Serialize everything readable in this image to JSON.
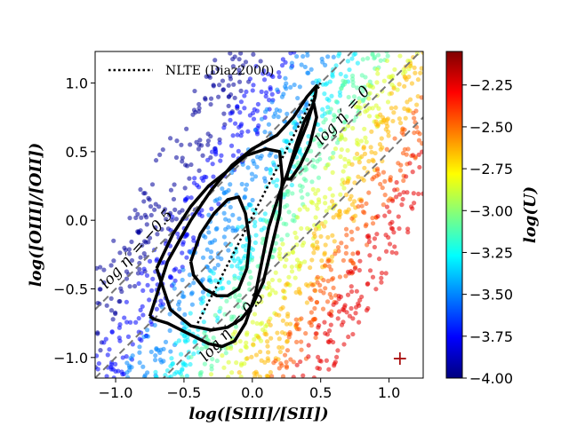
{
  "chart_data": {
    "type": "scatter",
    "xlabel": "log([SIII]/[SII])",
    "ylabel": "log([OIII]/[OII])",
    "xlim": [
      -1.15,
      1.25
    ],
    "ylim": [
      -1.15,
      1.23
    ],
    "x_ticks": [
      -1.0,
      -0.5,
      0.0,
      0.5,
      1.0
    ],
    "x_tick_labels": [
      "−1.0",
      "−0.5",
      "0.0",
      "0.5",
      "1.0"
    ],
    "y_ticks": [
      -1.0,
      -0.5,
      0.0,
      0.5,
      1.0
    ],
    "y_tick_labels": [
      "−1.0",
      "−0.5",
      "0.0",
      "0.5",
      "1.0"
    ],
    "colorbar": {
      "label": "log(U)",
      "range": [
        -4.0,
        -2.05
      ],
      "ticks": [
        -4.0,
        -3.75,
        -3.5,
        -3.25,
        -3.0,
        -2.75,
        -2.5,
        -2.25
      ],
      "tick_labels": [
        "−4.00",
        "−3.75",
        "−3.50",
        "−3.25",
        "−3.00",
        "−2.75",
        "−2.50",
        "−2.25"
      ],
      "colormap": "jet"
    },
    "legend": {
      "entries": [
        {
          "label": "NLTE (Diaz2000)",
          "style": "dotted",
          "color": "#000000"
        }
      ],
      "position": "top-left"
    },
    "dashed_lines": [
      {
        "label": "log η′ = −0.5",
        "log_eta": -0.5,
        "slope": 1.0,
        "intercept": 0.5
      },
      {
        "label": "log η′ = 0",
        "log_eta": 0,
        "slope": 1.0,
        "intercept": 0.0
      },
      {
        "label": "log η′ = 0.5",
        "log_eta": 0.5,
        "slope": 1.0,
        "intercept": -0.5
      }
    ],
    "nlte_line": {
      "x": [
        -0.4,
        0.5
      ],
      "y": [
        -0.75,
        1.0
      ]
    },
    "contours": [
      {
        "level": "outer",
        "x": [
          -0.75,
          -0.62,
          -0.45,
          -0.3,
          -0.15,
          0.0,
          0.18,
          0.3,
          0.4,
          0.47,
          0.46,
          0.4,
          0.3,
          0.2,
          0.12,
          0.07,
          0.02,
          -0.05,
          -0.13,
          -0.22,
          -0.32,
          -0.42,
          -0.52,
          -0.62,
          -0.72,
          -0.75
        ],
        "y": [
          -0.7,
          -0.3,
          0.0,
          0.22,
          0.4,
          0.52,
          0.62,
          0.75,
          0.9,
          0.98,
          0.9,
          0.7,
          0.45,
          0.2,
          -0.05,
          -0.3,
          -0.55,
          -0.75,
          -0.88,
          -0.92,
          -0.9,
          -0.85,
          -0.8,
          -0.75,
          -0.72,
          -0.7
        ]
      },
      {
        "level": "middle",
        "x": [
          -0.7,
          -0.58,
          -0.45,
          -0.32,
          -0.18,
          -0.05,
          0.1,
          0.2,
          0.22,
          0.2,
          0.14,
          0.08,
          0.0,
          -0.08,
          -0.18,
          -0.3,
          -0.45,
          -0.6,
          -0.7
        ],
        "y": [
          -0.35,
          -0.1,
          0.1,
          0.25,
          0.36,
          0.47,
          0.52,
          0.5,
          0.3,
          0.05,
          -0.2,
          -0.45,
          -0.62,
          -0.72,
          -0.78,
          -0.8,
          -0.77,
          -0.65,
          -0.35
        ]
      },
      {
        "level": "inner",
        "x": [
          -0.45,
          -0.38,
          -0.28,
          -0.18,
          -0.1,
          -0.05,
          -0.02,
          -0.04,
          -0.1,
          -0.18,
          -0.26,
          -0.35,
          -0.43,
          -0.45
        ],
        "y": [
          -0.3,
          -0.1,
          0.05,
          0.15,
          0.17,
          0.05,
          -0.15,
          -0.35,
          -0.5,
          -0.55,
          -0.55,
          -0.5,
          -0.4,
          -0.3
        ]
      },
      {
        "level": "upper",
        "x": [
          0.26,
          0.32,
          0.38,
          0.45,
          0.47,
          0.42,
          0.35,
          0.28,
          0.25,
          0.26
        ],
        "y": [
          0.35,
          0.55,
          0.72,
          0.85,
          0.75,
          0.55,
          0.4,
          0.3,
          0.3,
          0.35
        ]
      }
    ],
    "marker": {
      "x": 1.08,
      "y": -1.0,
      "symbol": "+",
      "color": "#aa1111"
    },
    "scatter_bands": [
      {
        "x0": -0.95,
        "x1": -0.55,
        "logU": -3.95
      },
      {
        "x0": -0.6,
        "x1": -0.3,
        "logU": -3.75
      },
      {
        "x0": -0.35,
        "x1": -0.05,
        "logU": -3.5
      },
      {
        "x0": -0.1,
        "x1": 0.15,
        "logU": -3.3
      },
      {
        "x0": 0.1,
        "x1": 0.35,
        "logU": -3.1
      },
      {
        "x0": 0.3,
        "x1": 0.55,
        "logU": -2.85
      },
      {
        "x0": 0.5,
        "x1": 0.75,
        "logU": -2.65
      },
      {
        "x0": 0.7,
        "x1": 0.95,
        "logU": -2.45
      },
      {
        "x0": 0.9,
        "x1": 1.2,
        "logU": -2.25
      }
    ]
  }
}
